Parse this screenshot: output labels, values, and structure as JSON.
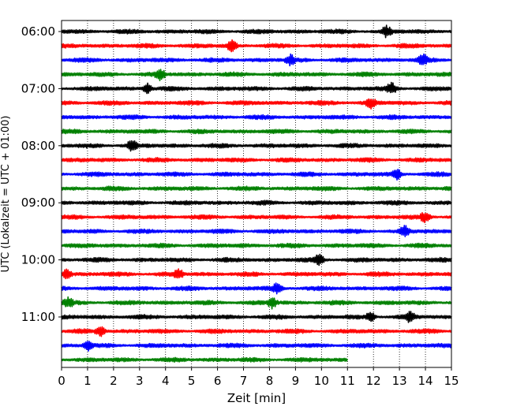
{
  "chart_data": {
    "type": "line",
    "title": "",
    "xlabel": "Zeit  [min]",
    "ylabel": "UTC (Lokalzeit = UTC + 01:00)",
    "xlim": [
      0,
      15
    ],
    "x_ticks": [
      "0",
      "1",
      "2",
      "3",
      "4",
      "5",
      "6",
      "7",
      "8",
      "9",
      "10",
      "11",
      "12",
      "13",
      "14",
      "15"
    ],
    "y_ticks": [
      "06:00",
      "07:00",
      "08:00",
      "09:00",
      "10:00",
      "11:00"
    ],
    "grid": {
      "x": true,
      "style": "dotted"
    },
    "trace_minutes": 15,
    "colors": [
      "#000000",
      "#ff0000",
      "#0000ff",
      "#008000"
    ],
    "series": [
      {
        "start": "06:00",
        "end_min": 15,
        "events": [
          12.5
        ]
      },
      {
        "start": "06:15",
        "end_min": 15,
        "events": [
          6.55
        ]
      },
      {
        "start": "06:30",
        "end_min": 15,
        "events": [
          8.8,
          13.9
        ]
      },
      {
        "start": "06:45",
        "end_min": 15,
        "events": [
          3.8
        ]
      },
      {
        "start": "07:00",
        "end_min": 15,
        "events": [
          3.3,
          12.7
        ]
      },
      {
        "start": "07:15",
        "end_min": 15,
        "events": [
          11.9
        ]
      },
      {
        "start": "07:30",
        "end_min": 15,
        "events": []
      },
      {
        "start": "07:45",
        "end_min": 15,
        "events": []
      },
      {
        "start": "08:00",
        "end_min": 15,
        "events": [
          2.7
        ]
      },
      {
        "start": "08:15",
        "end_min": 15,
        "events": []
      },
      {
        "start": "08:30",
        "end_min": 15,
        "events": [
          12.9
        ]
      },
      {
        "start": "08:45",
        "end_min": 15,
        "events": []
      },
      {
        "start": "09:00",
        "end_min": 15,
        "events": []
      },
      {
        "start": "09:15",
        "end_min": 15,
        "events": [
          14.0
        ]
      },
      {
        "start": "09:30",
        "end_min": 15,
        "events": [
          13.2
        ]
      },
      {
        "start": "09:45",
        "end_min": 15,
        "events": []
      },
      {
        "start": "10:00",
        "end_min": 15,
        "events": [
          9.9
        ]
      },
      {
        "start": "10:15",
        "end_min": 15,
        "events": [
          0.2,
          4.5
        ]
      },
      {
        "start": "10:30",
        "end_min": 15,
        "events": [
          8.3
        ]
      },
      {
        "start": "10:45",
        "end_min": 15,
        "events": [
          0.25,
          8.1
        ]
      },
      {
        "start": "11:00",
        "end_min": 15,
        "events": [
          11.9,
          13.4
        ]
      },
      {
        "start": "11:15",
        "end_min": 15,
        "events": [
          1.5
        ]
      },
      {
        "start": "11:30",
        "end_min": 15,
        "events": [
          1.0
        ]
      },
      {
        "start": "11:45",
        "end_min": 11,
        "events": []
      }
    ]
  }
}
